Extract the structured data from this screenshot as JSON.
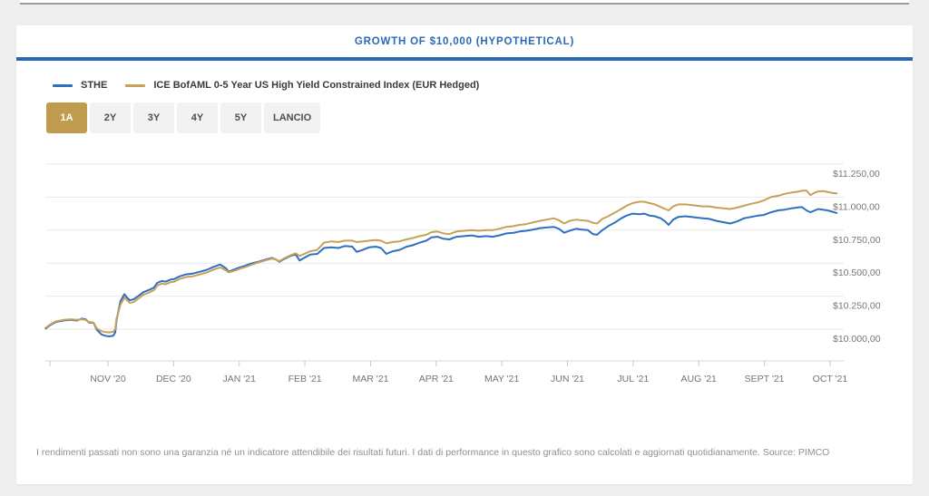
{
  "header": {
    "title": "GROWTH OF $10,000 (HYPOTHETICAL)"
  },
  "time_range": {
    "active": "1A",
    "buttons": [
      "1A",
      "2Y",
      "3Y",
      "4Y",
      "5Y",
      "LANCIO"
    ]
  },
  "footer": {
    "disclaimer": "I rendimenti passati non sono una garanzia né un indicatore attendibile dei risultati futuri. I dati di performance in questo grafico sono calcolati e aggiornati quotidianamente. Source: PIMCO"
  },
  "chart_data": {
    "type": "line",
    "title": "GROWTH OF $10,000 (HYPOTHETICAL)",
    "grid": true,
    "legend_position": "top-left",
    "x_axis": {
      "tick_labels": [
        "NOV '20",
        "DEC '20",
        "JAN '21",
        "FEB '21",
        "MAR '21",
        "APR '21",
        "MAY '21",
        "JUN '21",
        "JUL '21",
        "AUG '21",
        "SEPT '21",
        "OCT '21"
      ]
    },
    "y_axis": {
      "ticks": [
        {
          "value": 10000,
          "label": "$10.000,00"
        },
        {
          "value": 10250,
          "label": "$10.250,00"
        },
        {
          "value": 10500,
          "label": "$10.500,00"
        },
        {
          "value": 10750,
          "label": "$10.750,00"
        },
        {
          "value": 11000,
          "label": "$11.000,00"
        },
        {
          "value": 11250,
          "label": "$11.250,00"
        }
      ]
    },
    "ylim": [
      9760,
      11360
    ],
    "series": [
      {
        "name": "STHE",
        "color": "#2f6fc0",
        "points": [
          [
            0.05,
            10005
          ],
          [
            0.12,
            10030
          ],
          [
            0.21,
            10055
          ],
          [
            0.32,
            10065
          ],
          [
            0.43,
            10070
          ],
          [
            0.53,
            10065
          ],
          [
            0.6,
            10080
          ],
          [
            0.66,
            10075
          ],
          [
            0.71,
            10050
          ],
          [
            0.78,
            10048
          ],
          [
            0.83,
            9995
          ],
          [
            0.9,
            9960
          ],
          [
            0.96,
            9950
          ],
          [
            1.02,
            9945
          ],
          [
            1.08,
            9950
          ],
          [
            1.11,
            9975
          ],
          [
            1.13,
            10065
          ],
          [
            1.16,
            10140
          ],
          [
            1.19,
            10210
          ],
          [
            1.25,
            10265
          ],
          [
            1.29,
            10240
          ],
          [
            1.33,
            10220
          ],
          [
            1.39,
            10225
          ],
          [
            1.46,
            10250
          ],
          [
            1.54,
            10280
          ],
          [
            1.64,
            10300
          ],
          [
            1.7,
            10315
          ],
          [
            1.75,
            10350
          ],
          [
            1.82,
            10365
          ],
          [
            1.88,
            10360
          ],
          [
            1.95,
            10375
          ],
          [
            2.01,
            10380
          ],
          [
            2.09,
            10400
          ],
          [
            2.19,
            10415
          ],
          [
            2.29,
            10420
          ],
          [
            2.4,
            10435
          ],
          [
            2.51,
            10450
          ],
          [
            2.6,
            10470
          ],
          [
            2.71,
            10490
          ],
          [
            2.8,
            10460
          ],
          [
            2.84,
            10435
          ],
          [
            2.91,
            10450
          ],
          [
            2.99,
            10465
          ],
          [
            3.09,
            10480
          ],
          [
            3.2,
            10500
          ],
          [
            3.29,
            10510
          ],
          [
            3.39,
            10525
          ],
          [
            3.5,
            10540
          ],
          [
            3.57,
            10525
          ],
          [
            3.61,
            10510
          ],
          [
            3.68,
            10530
          ],
          [
            3.78,
            10555
          ],
          [
            3.86,
            10565
          ],
          [
            3.92,
            10520
          ],
          [
            3.99,
            10540
          ],
          [
            4.08,
            10565
          ],
          [
            4.19,
            10570
          ],
          [
            4.29,
            10615
          ],
          [
            4.4,
            10620
          ],
          [
            4.51,
            10615
          ],
          [
            4.61,
            10630
          ],
          [
            4.72,
            10625
          ],
          [
            4.79,
            10585
          ],
          [
            4.88,
            10600
          ],
          [
            4.98,
            10620
          ],
          [
            5.08,
            10625
          ],
          [
            5.16,
            10615
          ],
          [
            5.24,
            10570
          ],
          [
            5.34,
            10590
          ],
          [
            5.44,
            10600
          ],
          [
            5.55,
            10625
          ],
          [
            5.64,
            10635
          ],
          [
            5.75,
            10655
          ],
          [
            5.85,
            10670
          ],
          [
            5.93,
            10695
          ],
          [
            6.02,
            10700
          ],
          [
            6.11,
            10685
          ],
          [
            6.2,
            10680
          ],
          [
            6.31,
            10700
          ],
          [
            6.43,
            10705
          ],
          [
            6.54,
            10710
          ],
          [
            6.65,
            10700
          ],
          [
            6.76,
            10705
          ],
          [
            6.86,
            10700
          ],
          [
            6.96,
            10710
          ],
          [
            7.07,
            10725
          ],
          [
            7.18,
            10730
          ],
          [
            7.27,
            10740
          ],
          [
            7.37,
            10745
          ],
          [
            7.48,
            10755
          ],
          [
            7.58,
            10765
          ],
          [
            7.68,
            10770
          ],
          [
            7.79,
            10775
          ],
          [
            7.87,
            10760
          ],
          [
            7.95,
            10730
          ],
          [
            8.03,
            10745
          ],
          [
            8.13,
            10760
          ],
          [
            8.21,
            10755
          ],
          [
            8.31,
            10750
          ],
          [
            8.39,
            10720
          ],
          [
            8.45,
            10715
          ],
          [
            8.53,
            10750
          ],
          [
            8.62,
            10780
          ],
          [
            8.73,
            10810
          ],
          [
            8.82,
            10840
          ],
          [
            8.9,
            10860
          ],
          [
            8.99,
            10875
          ],
          [
            9.09,
            10870
          ],
          [
            9.17,
            10875
          ],
          [
            9.25,
            10860
          ],
          [
            9.33,
            10855
          ],
          [
            9.42,
            10840
          ],
          [
            9.49,
            10815
          ],
          [
            9.54,
            10790
          ],
          [
            9.61,
            10830
          ],
          [
            9.69,
            10850
          ],
          [
            9.79,
            10855
          ],
          [
            9.89,
            10850
          ],
          [
            9.97,
            10845
          ],
          [
            10.07,
            10840
          ],
          [
            10.16,
            10835
          ],
          [
            10.27,
            10820
          ],
          [
            10.38,
            10810
          ],
          [
            10.48,
            10800
          ],
          [
            10.58,
            10815
          ],
          [
            10.69,
            10840
          ],
          [
            10.8,
            10850
          ],
          [
            10.9,
            10860
          ],
          [
            10.99,
            10865
          ],
          [
            11.1,
            10885
          ],
          [
            11.21,
            10900
          ],
          [
            11.31,
            10905
          ],
          [
            11.41,
            10915
          ],
          [
            11.49,
            10920
          ],
          [
            11.57,
            10925
          ],
          [
            11.64,
            10900
          ],
          [
            11.7,
            10885
          ],
          [
            11.77,
            10900
          ],
          [
            11.82,
            10910
          ],
          [
            11.89,
            10905
          ],
          [
            11.96,
            10900
          ],
          [
            12.03,
            10890
          ],
          [
            12.1,
            10880
          ]
        ]
      },
      {
        "name": "ICE BofAML 0-5 Year US High Yield Constrained Index (EUR Hedged)",
        "color": "#c6a159",
        "points": [
          [
            0.05,
            10010
          ],
          [
            0.12,
            10035
          ],
          [
            0.21,
            10060
          ],
          [
            0.32,
            10070
          ],
          [
            0.43,
            10075
          ],
          [
            0.53,
            10070
          ],
          [
            0.6,
            10075
          ],
          [
            0.66,
            10070
          ],
          [
            0.71,
            10055
          ],
          [
            0.78,
            10050
          ],
          [
            0.83,
            10005
          ],
          [
            0.9,
            9985
          ],
          [
            0.96,
            9978
          ],
          [
            1.02,
            9975
          ],
          [
            1.08,
            9980
          ],
          [
            1.11,
            10000
          ],
          [
            1.13,
            10080
          ],
          [
            1.16,
            10130
          ],
          [
            1.19,
            10185
          ],
          [
            1.25,
            10240
          ],
          [
            1.29,
            10220
          ],
          [
            1.33,
            10200
          ],
          [
            1.39,
            10205
          ],
          [
            1.46,
            10230
          ],
          [
            1.54,
            10260
          ],
          [
            1.64,
            10280
          ],
          [
            1.7,
            10295
          ],
          [
            1.75,
            10330
          ],
          [
            1.82,
            10345
          ],
          [
            1.88,
            10340
          ],
          [
            1.95,
            10355
          ],
          [
            2.01,
            10360
          ],
          [
            2.09,
            10380
          ],
          [
            2.19,
            10395
          ],
          [
            2.29,
            10400
          ],
          [
            2.4,
            10415
          ],
          [
            2.51,
            10430
          ],
          [
            2.6,
            10450
          ],
          [
            2.71,
            10468
          ],
          [
            2.8,
            10445
          ],
          [
            2.84,
            10430
          ],
          [
            2.91,
            10440
          ],
          [
            2.99,
            10455
          ],
          [
            3.09,
            10470
          ],
          [
            3.2,
            10490
          ],
          [
            3.29,
            10505
          ],
          [
            3.39,
            10520
          ],
          [
            3.5,
            10535
          ],
          [
            3.57,
            10525
          ],
          [
            3.61,
            10515
          ],
          [
            3.68,
            10535
          ],
          [
            3.78,
            10560
          ],
          [
            3.86,
            10575
          ],
          [
            3.92,
            10555
          ],
          [
            3.99,
            10570
          ],
          [
            4.08,
            10590
          ],
          [
            4.19,
            10600
          ],
          [
            4.29,
            10655
          ],
          [
            4.4,
            10665
          ],
          [
            4.51,
            10660
          ],
          [
            4.61,
            10670
          ],
          [
            4.72,
            10670
          ],
          [
            4.79,
            10660
          ],
          [
            4.88,
            10665
          ],
          [
            4.98,
            10670
          ],
          [
            5.08,
            10675
          ],
          [
            5.16,
            10670
          ],
          [
            5.24,
            10650
          ],
          [
            5.34,
            10660
          ],
          [
            5.44,
            10665
          ],
          [
            5.55,
            10680
          ],
          [
            5.64,
            10690
          ],
          [
            5.75,
            10705
          ],
          [
            5.85,
            10715
          ],
          [
            5.93,
            10735
          ],
          [
            6.02,
            10740
          ],
          [
            6.11,
            10725
          ],
          [
            6.2,
            10720
          ],
          [
            6.31,
            10740
          ],
          [
            6.43,
            10745
          ],
          [
            6.54,
            10750
          ],
          [
            6.65,
            10745
          ],
          [
            6.76,
            10750
          ],
          [
            6.86,
            10750
          ],
          [
            6.96,
            10760
          ],
          [
            7.07,
            10775
          ],
          [
            7.18,
            10780
          ],
          [
            7.27,
            10790
          ],
          [
            7.37,
            10795
          ],
          [
            7.48,
            10810
          ],
          [
            7.58,
            10820
          ],
          [
            7.68,
            10830
          ],
          [
            7.79,
            10840
          ],
          [
            7.87,
            10825
          ],
          [
            7.95,
            10800
          ],
          [
            8.03,
            10820
          ],
          [
            8.13,
            10830
          ],
          [
            8.21,
            10825
          ],
          [
            8.31,
            10820
          ],
          [
            8.39,
            10805
          ],
          [
            8.45,
            10800
          ],
          [
            8.53,
            10835
          ],
          [
            8.62,
            10855
          ],
          [
            8.73,
            10885
          ],
          [
            8.82,
            10910
          ],
          [
            8.9,
            10935
          ],
          [
            8.99,
            10955
          ],
          [
            9.09,
            10965
          ],
          [
            9.17,
            10965
          ],
          [
            9.25,
            10955
          ],
          [
            9.33,
            10945
          ],
          [
            9.42,
            10925
          ],
          [
            9.49,
            10910
          ],
          [
            9.54,
            10900
          ],
          [
            9.61,
            10930
          ],
          [
            9.69,
            10945
          ],
          [
            9.79,
            10945
          ],
          [
            9.89,
            10940
          ],
          [
            9.97,
            10935
          ],
          [
            10.07,
            10930
          ],
          [
            10.16,
            10930
          ],
          [
            10.27,
            10920
          ],
          [
            10.38,
            10915
          ],
          [
            10.48,
            10910
          ],
          [
            10.58,
            10920
          ],
          [
            10.69,
            10935
          ],
          [
            10.8,
            10950
          ],
          [
            10.9,
            10960
          ],
          [
            10.99,
            10975
          ],
          [
            11.1,
            11000
          ],
          [
            11.21,
            11010
          ],
          [
            11.31,
            11025
          ],
          [
            11.41,
            11035
          ],
          [
            11.49,
            11040
          ],
          [
            11.57,
            11048
          ],
          [
            11.64,
            11050
          ],
          [
            11.7,
            11015
          ],
          [
            11.77,
            11035
          ],
          [
            11.82,
            11043
          ],
          [
            11.89,
            11045
          ],
          [
            11.96,
            11040
          ],
          [
            12.03,
            11032
          ],
          [
            12.1,
            11028
          ]
        ]
      }
    ]
  }
}
